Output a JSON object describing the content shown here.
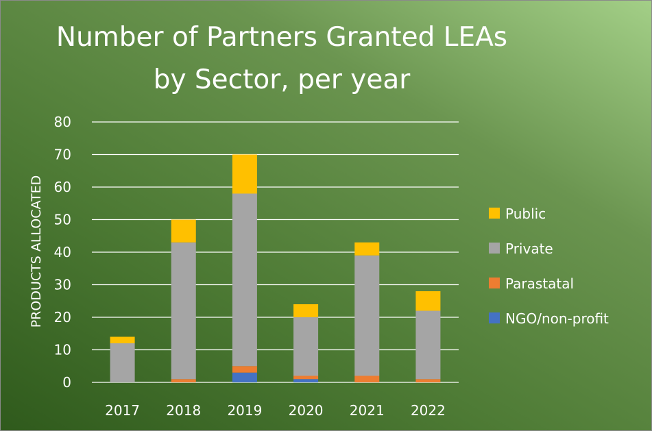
{
  "chart_data": {
    "type": "bar",
    "stacked": true,
    "title_lines": [
      "Number of Partners Granted LEAs",
      "by Sector, per year"
    ],
    "xlabel": "",
    "ylabel": "PRODUCTS ALLOCATED",
    "ylim": [
      0,
      80
    ],
    "yticks": [
      0,
      10,
      20,
      30,
      40,
      50,
      60,
      70,
      80
    ],
    "grid": true,
    "legend_position": "right",
    "categories": [
      "2017",
      "2018",
      "2019",
      "2020",
      "2021",
      "2022"
    ],
    "series": [
      {
        "name": "NGO/non-profit",
        "color": "#4472c4",
        "values": [
          0,
          0,
          3,
          1,
          0,
          0
        ]
      },
      {
        "name": "Parastatal",
        "color": "#ed7d31",
        "values": [
          0,
          1,
          2,
          1,
          2,
          1
        ]
      },
      {
        "name": "Private",
        "color": "#a5a5a5",
        "values": [
          12,
          42,
          53,
          18,
          37,
          21
        ]
      },
      {
        "name": "Public",
        "color": "#ffc000",
        "values": [
          2,
          7,
          12,
          4,
          4,
          6
        ]
      }
    ]
  }
}
